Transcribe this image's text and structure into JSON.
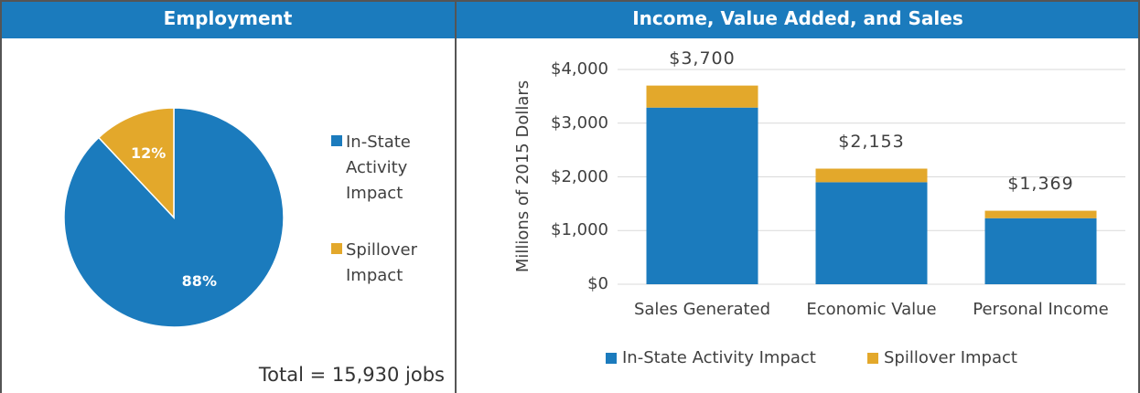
{
  "chart_data": [
    {
      "type": "pie",
      "title": "Employment",
      "categories": [
        "In-State Activity Impact",
        "Spillover Impact"
      ],
      "values": [
        88,
        12
      ],
      "value_labels": [
        "88%",
        "12%"
      ],
      "colors": [
        "#1b7bbd",
        "#e3a82b"
      ],
      "annotation": "Total = 15,930 jobs",
      "legend": "right"
    },
    {
      "type": "bar",
      "stacked": true,
      "title": "Income, Value Added, and Sales",
      "ylabel": "Millions of 2015 Dollars",
      "categories": [
        "Sales Generated",
        "Economic Value",
        "Personal Income"
      ],
      "series": [
        {
          "name": "In-State Activity Impact",
          "color": "#1b7bbd",
          "values": [
            3290,
            1900,
            1230
          ]
        },
        {
          "name": "Spillover Impact",
          "color": "#e3a82b",
          "values": [
            410,
            253,
            139
          ]
        }
      ],
      "totals": [
        3700,
        2153,
        1369
      ],
      "total_labels": [
        "$3,700",
        "$2,153",
        "$1,369"
      ],
      "ylim": [
        0,
        4000
      ],
      "yticks": [
        {
          "value": 0,
          "label": "$0"
        },
        {
          "value": 1000,
          "label": "$1,000"
        },
        {
          "value": 2000,
          "label": "$2,000"
        },
        {
          "value": 3000,
          "label": "$3,000"
        },
        {
          "value": 4000,
          "label": "$4,000"
        }
      ],
      "grid": true,
      "legend": "bottom"
    }
  ]
}
